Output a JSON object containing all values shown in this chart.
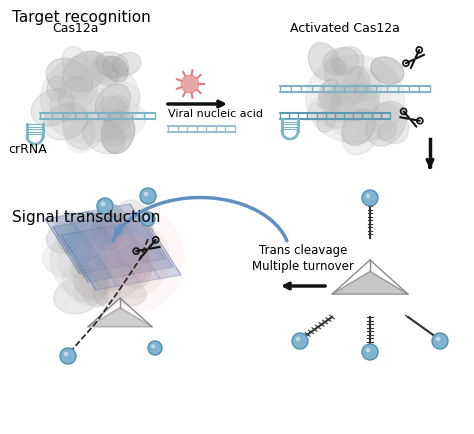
{
  "title_recognition": "Target recognition",
  "title_transduction": "Signal transduction",
  "label_cas12a": "Cas12a",
  "label_activated": "Activated Cas12a",
  "label_crrna": "crRNA",
  "label_viral": "Viral nucleic acid",
  "label_trans": "Trans cleavage\nMultiple turnover",
  "bg_color": "#ffffff",
  "text_color": "#000000",
  "protein_color_light": "#d0d0d0",
  "protein_color_dark": "#a0a0a0",
  "rna_color": "#7ab3c8",
  "rna_color2": "#5a9ab0",
  "viral_color": "#e08080",
  "arrow_color": "#111111",
  "blue_arrow_color": "#6090c0",
  "sphere_color": "#7fb3d0",
  "tetra_color": "#c0c0c0",
  "dna_color": "#7ab3c8",
  "scaffold_color": "#555555",
  "glow_color": "#f0a0a0"
}
